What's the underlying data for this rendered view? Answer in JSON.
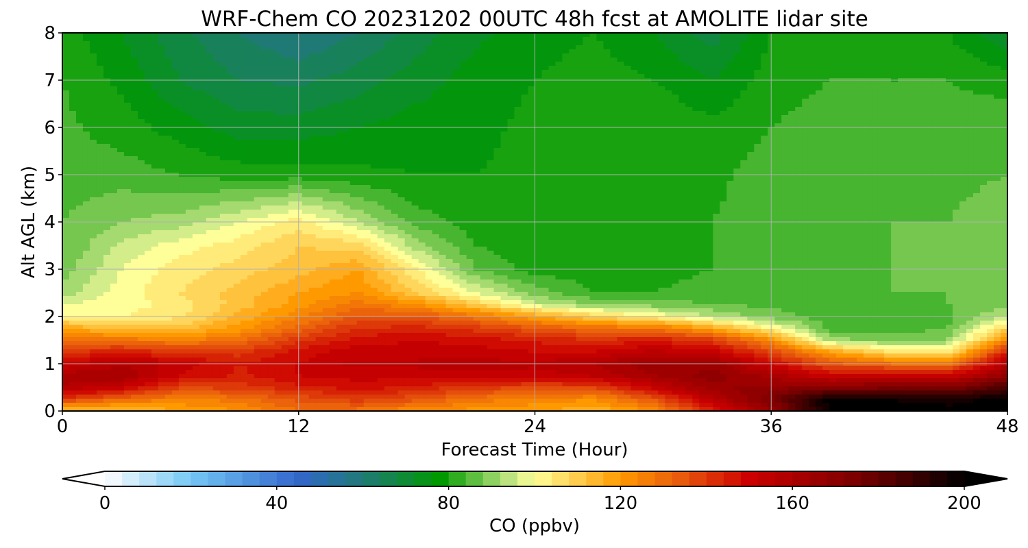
{
  "chart_data": {
    "type": "heatmap",
    "subtype": "filled-contour time-height curtain",
    "title": "WRF-Chem CO  20231202 00UTC 48h fcst at AMOLITE lidar site",
    "xlabel": "Forecast Time (Hour)",
    "ylabel": "Alt AGL (km)",
    "xlim": [
      0,
      48
    ],
    "ylim": [
      0,
      8
    ],
    "xticks": [
      0,
      12,
      24,
      36,
      48
    ],
    "yticks": [
      0,
      1,
      2,
      3,
      4,
      5,
      6,
      7,
      8
    ],
    "grid": true,
    "x_hours": [
      0,
      3,
      6,
      9,
      12,
      15,
      18,
      21,
      24,
      27,
      30,
      33,
      36,
      39,
      42,
      45,
      48
    ],
    "z_levels_km": [
      0,
      0.25,
      0.5,
      0.75,
      1,
      1.25,
      1.5,
      1.75,
      2,
      2.25,
      2.5,
      3,
      3.5,
      4,
      5,
      6,
      7,
      8
    ],
    "values_ppbv": [
      [
        110,
        112,
        118,
        122,
        130,
        128,
        122,
        120,
        118,
        115,
        122,
        145,
        165,
        200,
        200,
        200,
        200
      ],
      [
        140,
        130,
        125,
        128,
        135,
        140,
        135,
        128,
        125,
        122,
        135,
        155,
        175,
        200,
        198,
        196,
        200
      ],
      [
        158,
        152,
        138,
        140,
        145,
        148,
        145,
        140,
        138,
        138,
        152,
        165,
        168,
        170,
        172,
        172,
        185
      ],
      [
        160,
        162,
        150,
        145,
        150,
        152,
        152,
        152,
        152,
        155,
        162,
        168,
        160,
        150,
        152,
        150,
        168
      ],
      [
        150,
        158,
        152,
        146,
        150,
        155,
        155,
        156,
        155,
        158,
        165,
        165,
        150,
        135,
        130,
        128,
        158
      ],
      [
        140,
        145,
        140,
        140,
        148,
        152,
        152,
        152,
        150,
        150,
        155,
        152,
        138,
        118,
        106,
        104,
        145
      ],
      [
        130,
        128,
        125,
        130,
        140,
        148,
        150,
        148,
        145,
        142,
        145,
        140,
        122,
        92,
        88,
        90,
        125
      ],
      [
        118,
        112,
        112,
        120,
        132,
        142,
        144,
        140,
        135,
        130,
        128,
        118,
        102,
        84,
        84,
        86,
        108
      ],
      [
        102,
        102,
        105,
        115,
        125,
        135,
        135,
        128,
        118,
        108,
        102,
        94,
        88,
        84,
        85,
        85,
        95
      ],
      [
        98,
        100,
        104,
        112,
        120,
        128,
        122,
        110,
        96,
        90,
        88,
        86,
        85,
        85,
        85,
        86,
        88
      ],
      [
        92,
        100,
        106,
        112,
        118,
        122,
        110,
        98,
        88,
        82,
        82,
        84,
        85,
        85,
        86,
        86,
        88
      ],
      [
        88,
        98,
        104,
        108,
        112,
        118,
        102,
        86,
        80,
        80,
        80,
        82,
        84,
        85,
        86,
        86,
        88
      ],
      [
        86,
        95,
        100,
        104,
        110,
        108,
        92,
        82,
        79,
        80,
        81,
        82,
        84,
        85,
        86,
        86,
        88
      ],
      [
        86,
        90,
        92,
        98,
        104,
        94,
        84,
        80,
        79,
        80,
        81,
        82,
        84,
        85,
        86,
        86,
        88
      ],
      [
        84,
        84,
        82,
        80,
        80,
        79,
        78,
        78,
        79,
        81,
        82,
        81,
        84,
        84,
        85,
        85,
        86
      ],
      [
        83,
        80,
        76,
        72,
        72,
        74,
        76,
        77,
        79,
        81,
        82,
        79,
        82,
        84,
        84,
        84,
        85
      ],
      [
        82,
        77,
        70,
        66,
        65,
        68,
        72,
        76,
        78,
        80,
        78,
        74,
        80,
        82,
        82,
        82,
        80
      ],
      [
        80,
        74,
        67,
        62,
        58,
        62,
        68,
        73,
        76,
        78,
        74,
        68,
        78,
        80,
        80,
        78,
        70
      ]
    ]
  },
  "colorbar": {
    "label": "CO  (ppbv)",
    "range": [
      0,
      200
    ],
    "ticks": [
      0,
      40,
      80,
      120,
      160,
      200
    ],
    "extend": "both",
    "colors": {
      "min": "#ffffff",
      "c20": "#74c7f5",
      "c45": "#3366cc",
      "c60": "#1f7a75",
      "c78": "#009900",
      "c95": "#c8e888",
      "c100": "#ffff99",
      "c120": "#ff9900",
      "c135": "#e6550d",
      "c150": "#cc0000",
      "c175": "#7a0000",
      "c200": "#000000"
    }
  }
}
